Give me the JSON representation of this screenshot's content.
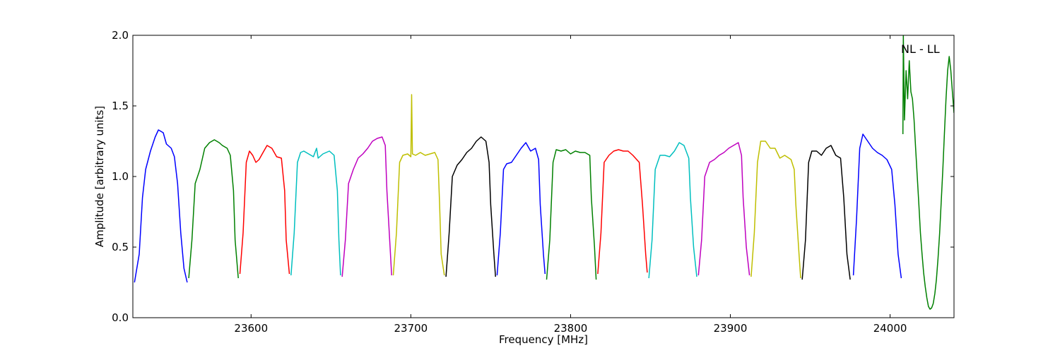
{
  "chart_data": {
    "type": "line",
    "title": "",
    "xlabel": "Frequency [MHz]",
    "ylabel": "Amplitude [arbitrary units]",
    "xlim": [
      23526,
      24040
    ],
    "ylim": [
      0.0,
      2.0
    ],
    "xticks": [
      23600,
      23700,
      23800,
      23900,
      24000
    ],
    "xtick_labels": [
      "23600",
      "23700",
      "23800",
      "23900",
      "24000"
    ],
    "yticks": [
      0.0,
      0.5,
      1.0,
      1.5,
      2.0
    ],
    "ytick_labels": [
      "0.0",
      "0.5",
      "1.0",
      "1.5",
      "2.0"
    ],
    "grid": false,
    "annotation": "NL - LL",
    "series": [
      {
        "color": "#0000ff",
        "points": [
          [
            23527,
            0.25
          ],
          [
            23530,
            0.45
          ],
          [
            23532,
            0.85
          ],
          [
            23534,
            1.05
          ],
          [
            23537,
            1.18
          ],
          [
            23540,
            1.28
          ],
          [
            23542,
            1.33
          ],
          [
            23545,
            1.31
          ],
          [
            23547,
            1.23
          ],
          [
            23550,
            1.2
          ],
          [
            23552,
            1.14
          ],
          [
            23554,
            0.95
          ],
          [
            23556,
            0.6
          ],
          [
            23558,
            0.35
          ],
          [
            23560,
            0.25
          ]
        ]
      },
      {
        "color": "#008000",
        "points": [
          [
            23561,
            0.28
          ],
          [
            23563,
            0.55
          ],
          [
            23565,
            0.95
          ],
          [
            23568,
            1.05
          ],
          [
            23571,
            1.2
          ],
          [
            23574,
            1.24
          ],
          [
            23577,
            1.26
          ],
          [
            23580,
            1.24
          ],
          [
            23582,
            1.22
          ],
          [
            23585,
            1.2
          ],
          [
            23587,
            1.15
          ],
          [
            23589,
            0.9
          ],
          [
            23590,
            0.55
          ],
          [
            23592,
            0.28
          ]
        ]
      },
      {
        "color": "#ff0000",
        "points": [
          [
            23593,
            0.31
          ],
          [
            23595,
            0.6
          ],
          [
            23597,
            1.1
          ],
          [
            23599,
            1.18
          ],
          [
            23601,
            1.15
          ],
          [
            23603,
            1.1
          ],
          [
            23605,
            1.12
          ],
          [
            23607,
            1.16
          ],
          [
            23610,
            1.22
          ],
          [
            23613,
            1.2
          ],
          [
            23616,
            1.14
          ],
          [
            23619,
            1.13
          ],
          [
            23621,
            0.9
          ],
          [
            23622,
            0.55
          ],
          [
            23624,
            0.31
          ]
        ]
      },
      {
        "color": "#00bfbf",
        "points": [
          [
            23625,
            0.3
          ],
          [
            23627,
            0.6
          ],
          [
            23629,
            1.1
          ],
          [
            23631,
            1.17
          ],
          [
            23633,
            1.18
          ],
          [
            23636,
            1.16
          ],
          [
            23639,
            1.14
          ],
          [
            23641,
            1.2
          ],
          [
            23642,
            1.13
          ],
          [
            23645,
            1.16
          ],
          [
            23649,
            1.18
          ],
          [
            23652,
            1.15
          ],
          [
            23654,
            0.9
          ],
          [
            23655,
            0.55
          ],
          [
            23656,
            0.3
          ]
        ]
      },
      {
        "color": "#bf00bf",
        "points": [
          [
            23657,
            0.29
          ],
          [
            23659,
            0.55
          ],
          [
            23661,
            0.95
          ],
          [
            23664,
            1.05
          ],
          [
            23667,
            1.13
          ],
          [
            23670,
            1.16
          ],
          [
            23673,
            1.2
          ],
          [
            23676,
            1.25
          ],
          [
            23679,
            1.27
          ],
          [
            23682,
            1.28
          ],
          [
            23684,
            1.22
          ],
          [
            23685,
            0.9
          ],
          [
            23687,
            0.5
          ],
          [
            23688,
            0.3
          ]
        ]
      },
      {
        "color": "#bfbf00",
        "points": [
          [
            23689,
            0.3
          ],
          [
            23691,
            0.6
          ],
          [
            23693,
            1.1
          ],
          [
            23695,
            1.15
          ],
          [
            23698,
            1.16
          ],
          [
            23700,
            1.14
          ],
          [
            23700.5,
            1.58
          ],
          [
            23701,
            1.16
          ],
          [
            23703,
            1.15
          ],
          [
            23706,
            1.17
          ],
          [
            23709,
            1.15
          ],
          [
            23712,
            1.16
          ],
          [
            23715,
            1.17
          ],
          [
            23717,
            1.12
          ],
          [
            23718,
            0.8
          ],
          [
            23719,
            0.45
          ],
          [
            23721,
            0.3
          ]
        ]
      },
      {
        "color": "#000000",
        "points": [
          [
            23722,
            0.29
          ],
          [
            23724,
            0.6
          ],
          [
            23726,
            1.0
          ],
          [
            23729,
            1.08
          ],
          [
            23732,
            1.12
          ],
          [
            23735,
            1.17
          ],
          [
            23738,
            1.2
          ],
          [
            23741,
            1.25
          ],
          [
            23744,
            1.28
          ],
          [
            23747,
            1.25
          ],
          [
            23749,
            1.1
          ],
          [
            23750,
            0.8
          ],
          [
            23752,
            0.45
          ],
          [
            23753,
            0.29
          ]
        ]
      },
      {
        "color": "#0000ff",
        "points": [
          [
            23754,
            0.3
          ],
          [
            23756,
            0.6
          ],
          [
            23758,
            1.05
          ],
          [
            23760,
            1.09
          ],
          [
            23763,
            1.1
          ],
          [
            23766,
            1.15
          ],
          [
            23769,
            1.2
          ],
          [
            23772,
            1.24
          ],
          [
            23775,
            1.18
          ],
          [
            23778,
            1.2
          ],
          [
            23780,
            1.12
          ],
          [
            23781,
            0.8
          ],
          [
            23783,
            0.45
          ],
          [
            23784,
            0.31
          ]
        ]
      },
      {
        "color": "#008000",
        "points": [
          [
            23785,
            0.27
          ],
          [
            23787,
            0.55
          ],
          [
            23789,
            1.1
          ],
          [
            23791,
            1.19
          ],
          [
            23794,
            1.18
          ],
          [
            23797,
            1.19
          ],
          [
            23800,
            1.16
          ],
          [
            23803,
            1.18
          ],
          [
            23806,
            1.17
          ],
          [
            23809,
            1.17
          ],
          [
            23812,
            1.15
          ],
          [
            23813,
            0.85
          ],
          [
            23815,
            0.5
          ],
          [
            23816,
            0.27
          ]
        ]
      },
      {
        "color": "#ff0000",
        "points": [
          [
            23817,
            0.31
          ],
          [
            23819,
            0.6
          ],
          [
            23821,
            1.1
          ],
          [
            23824,
            1.15
          ],
          [
            23827,
            1.18
          ],
          [
            23830,
            1.19
          ],
          [
            23833,
            1.18
          ],
          [
            23836,
            1.18
          ],
          [
            23839,
            1.15
          ],
          [
            23843,
            1.1
          ],
          [
            23845,
            0.8
          ],
          [
            23847,
            0.45
          ],
          [
            23848,
            0.32
          ]
        ]
      },
      {
        "color": "#00bfbf",
        "points": [
          [
            23849,
            0.28
          ],
          [
            23851,
            0.55
          ],
          [
            23853,
            1.05
          ],
          [
            23856,
            1.15
          ],
          [
            23859,
            1.15
          ],
          [
            23862,
            1.14
          ],
          [
            23865,
            1.18
          ],
          [
            23868,
            1.24
          ],
          [
            23871,
            1.22
          ],
          [
            23874,
            1.13
          ],
          [
            23875,
            0.85
          ],
          [
            23877,
            0.5
          ],
          [
            23879,
            0.29
          ]
        ]
      },
      {
        "color": "#bf00bf",
        "points": [
          [
            23880,
            0.3
          ],
          [
            23882,
            0.55
          ],
          [
            23884,
            1.0
          ],
          [
            23887,
            1.1
          ],
          [
            23890,
            1.12
          ],
          [
            23893,
            1.15
          ],
          [
            23896,
            1.17
          ],
          [
            23899,
            1.2
          ],
          [
            23902,
            1.22
          ],
          [
            23905,
            1.24
          ],
          [
            23907,
            1.15
          ],
          [
            23908,
            0.85
          ],
          [
            23910,
            0.5
          ],
          [
            23912,
            0.3
          ]
        ]
      },
      {
        "color": "#bfbf00",
        "points": [
          [
            23913,
            0.29
          ],
          [
            23915,
            0.6
          ],
          [
            23917,
            1.1
          ],
          [
            23919,
            1.25
          ],
          [
            23922,
            1.25
          ],
          [
            23925,
            1.2
          ],
          [
            23928,
            1.2
          ],
          [
            23931,
            1.13
          ],
          [
            23934,
            1.15
          ],
          [
            23938,
            1.12
          ],
          [
            23940,
            1.05
          ],
          [
            23941,
            0.8
          ],
          [
            23943,
            0.45
          ],
          [
            23944,
            0.28
          ]
        ]
      },
      {
        "color": "#000000",
        "points": [
          [
            23945,
            0.27
          ],
          [
            23947,
            0.55
          ],
          [
            23949,
            1.1
          ],
          [
            23951,
            1.18
          ],
          [
            23954,
            1.18
          ],
          [
            23957,
            1.15
          ],
          [
            23960,
            1.2
          ],
          [
            23963,
            1.22
          ],
          [
            23966,
            1.15
          ],
          [
            23969,
            1.13
          ],
          [
            23971,
            0.85
          ],
          [
            23973,
            0.45
          ],
          [
            23975,
            0.27
          ]
        ]
      },
      {
        "color": "#0000ff",
        "points": [
          [
            23977,
            0.3
          ],
          [
            23979,
            0.7
          ],
          [
            23981,
            1.2
          ],
          [
            23983,
            1.3
          ],
          [
            23986,
            1.25
          ],
          [
            23989,
            1.2
          ],
          [
            23992,
            1.17
          ],
          [
            23995,
            1.15
          ],
          [
            23998,
            1.12
          ],
          [
            24001,
            1.05
          ],
          [
            24003,
            0.8
          ],
          [
            24005,
            0.45
          ],
          [
            24007,
            0.28
          ]
        ]
      },
      {
        "color": "#008000",
        "points": [
          [
            24008,
            1.3
          ],
          [
            24008.3,
            2.0
          ],
          [
            24009,
            1.4
          ],
          [
            24010,
            1.75
          ],
          [
            24011,
            1.55
          ],
          [
            24012,
            1.82
          ],
          [
            24013,
            1.6
          ],
          [
            24014,
            1.55
          ],
          [
            24015,
            1.4
          ],
          [
            24016,
            1.2
          ],
          [
            24017,
            1.0
          ],
          [
            24018,
            0.8
          ],
          [
            24019,
            0.6
          ],
          [
            24020,
            0.45
          ],
          [
            24021,
            0.32
          ],
          [
            24022,
            0.22
          ],
          [
            24023,
            0.14
          ],
          [
            24024,
            0.08
          ],
          [
            24025,
            0.06
          ],
          [
            24026,
            0.07
          ],
          [
            24027,
            0.1
          ],
          [
            24028,
            0.17
          ],
          [
            24029,
            0.27
          ],
          [
            24030,
            0.42
          ],
          [
            24031,
            0.6
          ],
          [
            24032,
            0.82
          ],
          [
            24033,
            1.05
          ],
          [
            24034,
            1.3
          ],
          [
            24035,
            1.55
          ],
          [
            24036,
            1.75
          ],
          [
            24037,
            1.85
          ],
          [
            24038,
            1.75
          ],
          [
            24039,
            1.6
          ],
          [
            24040,
            1.45
          ]
        ]
      }
    ]
  }
}
